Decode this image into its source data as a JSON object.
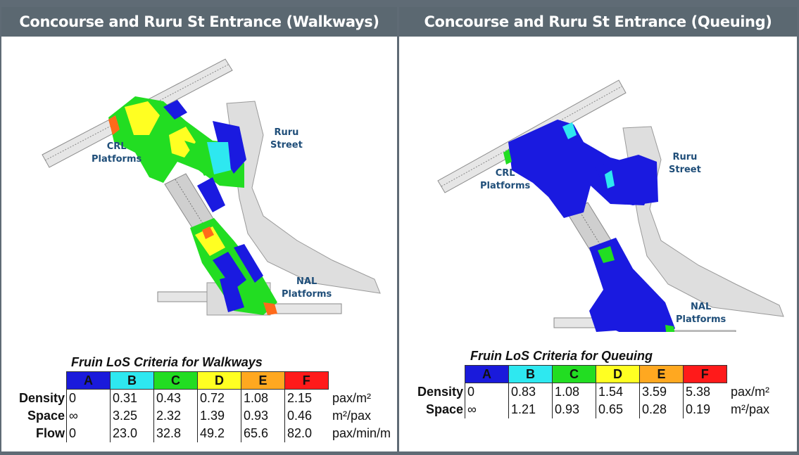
{
  "panels": [
    {
      "title": "Concourse and Ruru St Entrance (Walkways)",
      "labels": {
        "crl": [
          "CRL",
          "Platforms"
        ],
        "ruru": [
          "Ruru",
          "Street"
        ],
        "nal": [
          "NAL",
          "Platforms"
        ]
      },
      "table": {
        "title": "Fruin LoS Criteria for Walkways",
        "grades": [
          "A",
          "B",
          "C",
          "D",
          "E",
          "F"
        ],
        "rows": [
          {
            "label": "Density",
            "values": [
              "0",
              "0.31",
              "0.43",
              "0.72",
              "1.08",
              "2.15"
            ],
            "unit": "pax/m²"
          },
          {
            "label": "Space",
            "values": [
              "∞",
              "3.25",
              "2.32",
              "1.39",
              "0.93",
              "0.46"
            ],
            "unit": "m²/pax"
          },
          {
            "label": "Flow",
            "values": [
              "0",
              "23.0",
              "32.8",
              "49.2",
              "65.6",
              "82.0"
            ],
            "unit": "pax/min/m"
          }
        ]
      }
    },
    {
      "title": "Concourse and Ruru St Entrance (Queuing)",
      "labels": {
        "crl": [
          "CRL",
          "Platforms"
        ],
        "ruru": [
          "Ruru",
          "Street"
        ],
        "nal": [
          "NAL",
          "Platforms"
        ]
      },
      "table": {
        "title": "Fruin LoS Criteria for Queuing",
        "grades": [
          "A",
          "B",
          "C",
          "D",
          "E",
          "F"
        ],
        "rows": [
          {
            "label": "Density",
            "values": [
              "0",
              "0.83",
              "1.08",
              "1.54",
              "3.59",
              "5.38"
            ],
            "unit": "pax/m²"
          },
          {
            "label": "Space",
            "values": [
              "∞",
              "1.21",
              "0.93",
              "0.65",
              "0.28",
              "0.19"
            ],
            "unit": "m²/pax"
          }
        ]
      }
    }
  ],
  "grade_colors": [
    "#1a1adb",
    "#2ee8f0",
    "#22dd22",
    "#ffff22",
    "#ffa820",
    "#ff1a1a"
  ],
  "map_colors": {
    "floor": "#d9d9d9",
    "outline": "#8c8c8c",
    "walk_low": "#1a1ae0",
    "walk_mid": "#22dd22",
    "walk_high": "#ffff22",
    "walk_hot": "#ff6a1a",
    "teal": "#2ee8f0"
  }
}
